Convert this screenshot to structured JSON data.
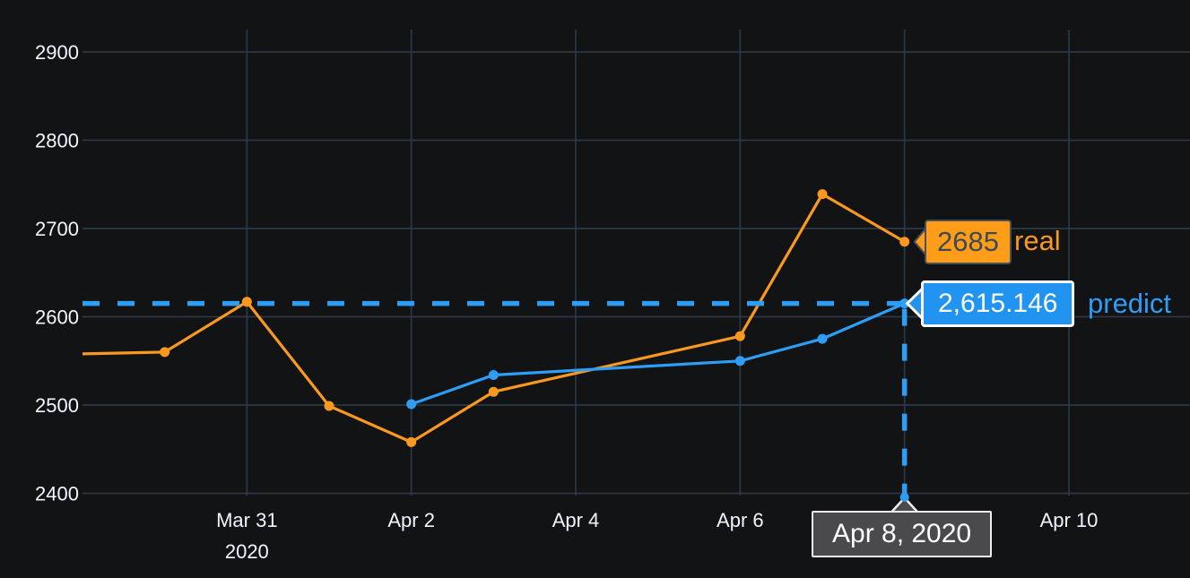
{
  "chart_data": {
    "type": "line",
    "title": "",
    "legend": "none",
    "grid": true,
    "x_axis": {
      "day0_date": "2020-03-29",
      "ticks": [
        {
          "day": 2,
          "label": "Mar 31",
          "sublabel": "2020"
        },
        {
          "day": 4,
          "label": "Apr 2"
        },
        {
          "day": 6,
          "label": "Apr 4"
        },
        {
          "day": 8,
          "label": "Apr 6"
        },
        {
          "day": 10,
          "label": "Apr 8"
        },
        {
          "day": 12,
          "label": "Apr 10"
        }
      ]
    },
    "y_axis": {
      "ticks": [
        2900,
        2800,
        2700,
        2600,
        2500,
        2400
      ],
      "range": [
        2397,
        2925
      ]
    },
    "series": [
      {
        "name": "real",
        "color": "#fa9820",
        "points": [
          {
            "date": "2020-03-29",
            "day": 0,
            "value": 2558,
            "marker": false
          },
          {
            "date": "2020-03-30",
            "day": 1,
            "value": 2560
          },
          {
            "date": "2020-03-31",
            "day": 2,
            "value": 2617
          },
          {
            "date": "2020-04-01",
            "day": 3,
            "value": 2499
          },
          {
            "date": "2020-04-02",
            "day": 4,
            "value": 2458
          },
          {
            "date": "2020-04-03",
            "day": 5,
            "value": 2515
          },
          {
            "date": "2020-04-06",
            "day": 8,
            "value": 2578
          },
          {
            "date": "2020-04-07",
            "day": 9,
            "value": 2739
          },
          {
            "date": "2020-04-08",
            "day": 10,
            "value": 2685
          }
        ]
      },
      {
        "name": "predict",
        "color": "#2e9df5",
        "points": [
          {
            "date": "2020-04-02",
            "day": 4,
            "value": 2501
          },
          {
            "date": "2020-04-03",
            "day": 5,
            "value": 2534
          },
          {
            "date": "2020-04-06",
            "day": 8,
            "value": 2550
          },
          {
            "date": "2020-04-07",
            "day": 9,
            "value": 2575
          },
          {
            "date": "2020-04-08",
            "day": 10,
            "value": 2615.146
          }
        ]
      }
    ],
    "hover": {
      "date_label": "Apr 8, 2020",
      "target": {
        "series": "predict",
        "date": "2020-04-08",
        "day": 10,
        "value": 2615.146
      },
      "items": [
        {
          "series": "real",
          "value_label": "2685",
          "bg": "#ff9d18",
          "text_color": "#3d4a56"
        },
        {
          "series": "predict",
          "value_label": "2,615.146",
          "bg": "#2193f0",
          "text_color": "#ffffff"
        }
      ],
      "spike_color": "#2e9df5",
      "spike_style": "dashed"
    },
    "colors": {
      "background": "#121314",
      "grid": "#2c3845",
      "tick_text": "#f2f5fa",
      "tooltip_bg": "#4a4a4c",
      "tooltip_border": "#ededed"
    }
  }
}
